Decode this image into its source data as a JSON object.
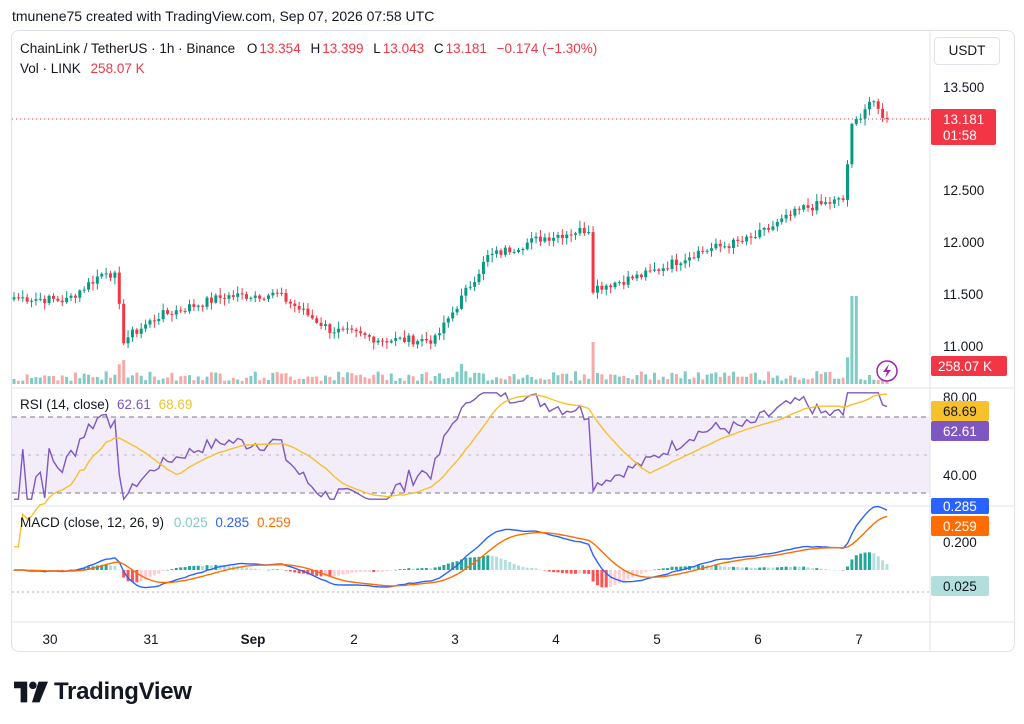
{
  "header": {
    "text": "tmunene75 created with TradingView.com, Sep 07, 2026 07:58 UTC"
  },
  "legend": {
    "symbol": "ChainLink / TetherUS · 1h · Binance",
    "o_label": "O",
    "o": "13.354",
    "h_label": "H",
    "h": "13.399",
    "l_label": "L",
    "l": "13.043",
    "c_label": "C",
    "c": "13.181",
    "change": "−0.174 (−1.30%)",
    "vol_label": "Vol · LINK",
    "vol": "258.07 K"
  },
  "currency_button": "USDT",
  "price_axis": {
    "ticks": [
      "13.500",
      "12.500",
      "12.000",
      "11.500",
      "11.000"
    ],
    "last_price": "13.181",
    "countdown": "01:58",
    "volume_badge": "258.07 K"
  },
  "rsi": {
    "label": "RSI (14, close)",
    "value": "62.61",
    "ma": "68.69",
    "ticks": [
      "80.00",
      "40.00"
    ]
  },
  "macd": {
    "label": "MACD (close, 12, 26, 9)",
    "hist": "0.025",
    "macd": "0.285",
    "signal": "0.259",
    "ticks": [
      "0.200"
    ],
    "hist_badge": "0.025"
  },
  "time_axis": [
    "30",
    "31",
    "Sep",
    "2",
    "3",
    "4",
    "5",
    "6",
    "7"
  ],
  "brand": "TradingView",
  "colors": {
    "up": "#089981",
    "down": "#f23645",
    "rsi": "#7e57c2",
    "rsi_ma": "#f7c02d",
    "macd": "#2962ff",
    "signal": "#ff6d00"
  },
  "chart_data": {
    "type": "candlestick",
    "price_range": [
      10.75,
      13.75
    ],
    "anchors": [
      {
        "t": "Aug 30 00:00",
        "close": 11.46
      },
      {
        "t": "Aug 30 12:00",
        "close": 11.43
      },
      {
        "t": "Aug 30 21:00",
        "close": 11.72
      },
      {
        "t": "Aug 30 23:00",
        "close": 11.66
      },
      {
        "t": "Aug 31 01:00",
        "close": 11.05
      },
      {
        "t": "Aug 31 09:00",
        "close": 11.28
      },
      {
        "t": "Sep 1 00:00",
        "close": 11.47
      },
      {
        "t": "Sep 1 12:00",
        "close": 11.49
      },
      {
        "t": "Sep 2 00:00",
        "close": 11.15
      },
      {
        "t": "Sep 2 12:00",
        "close": 11.05
      },
      {
        "t": "Sep 3 00:00",
        "close": 11.05
      },
      {
        "t": "Sep 3 12:00",
        "close": 11.85
      },
      {
        "t": "Sep 4 00:00",
        "close": 12.03
      },
      {
        "t": "Sep 4 11:00",
        "close": 12.12
      },
      {
        "t": "Sep 4 12:00",
        "close": 11.55
      },
      {
        "t": "Sep 5 00:00",
        "close": 11.68
      },
      {
        "t": "Sep 5 12:00",
        "close": 11.9
      },
      {
        "t": "Sep 6 00:00",
        "close": 12.02
      },
      {
        "t": "Sep 6 12:00",
        "close": 12.32
      },
      {
        "t": "Sep 6 21:00",
        "close": 12.4
      },
      {
        "t": "Sep 6 23:00",
        "close": 13.1
      },
      {
        "t": "Sep 7 03:00",
        "close": 13.35
      },
      {
        "t": "Sep 7 07:00",
        "close": 13.181
      }
    ],
    "rsi_range": [
      25,
      85
    ],
    "rsi_levels": [
      70,
      30
    ],
    "macd_range": [
      -0.25,
      0.35
    ]
  }
}
